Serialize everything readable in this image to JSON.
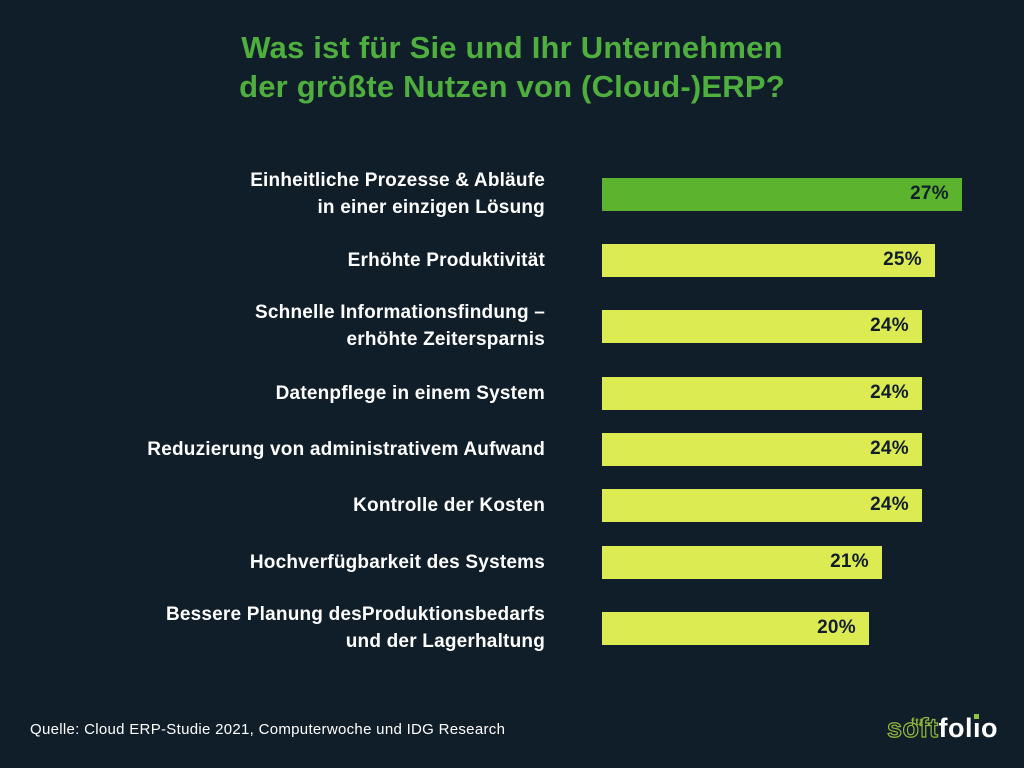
{
  "title": {
    "text": "Was ist für Sie und Ihr Unternehmen\nder größte Nutzen von (Cloud-)ERP?"
  },
  "chart_data": {
    "type": "bar",
    "orientation": "horizontal",
    "title": "Was ist für Sie und Ihr Unternehmen der größte Nutzen von (Cloud-)ERP?",
    "categories": [
      "Einheitliche Prozesse & Abläufe\nin einer einzigen Lösung",
      "Erhöhte Produktivität",
      "Schnelle Informationsfindung –\nerhöhte Zeitersparnis",
      "Datenpflege in einem System",
      "Reduzierung von administrativem Aufwand",
      "Kontrolle der Kosten",
      "Hochverfügbarkeit des Systems",
      "Bessere Planung desProduktionsbedarfs\nund der Lagerhaltung"
    ],
    "values": [
      27,
      25,
      24,
      24,
      24,
      24,
      21,
      20
    ],
    "value_labels": [
      "27%",
      "25%",
      "24%",
      "24%",
      "24%",
      "24%",
      "21%",
      "20%"
    ],
    "bar_colors": [
      "#5cb32e",
      "#ddeb52",
      "#ddeb52",
      "#ddeb52",
      "#ddeb52",
      "#ddeb52",
      "#ddeb52",
      "#ddeb52"
    ],
    "xlim": [
      0,
      27
    ],
    "grid": false,
    "legend": false,
    "value_label_position": "inside-end"
  },
  "source": {
    "text": "Quelle: Cloud ERP-Studie 2021, Computerwoche und IDG Research"
  },
  "logo": {
    "part_soft": "soft",
    "flourish": "ftt",
    "folio_prefix": "fol",
    "folio_i": "ı",
    "folio_suffix": "o"
  },
  "colors": {
    "background": "#101e2a",
    "title_green": "#4faf3e",
    "highlight_bar_green": "#5cb32e",
    "bar_yellow_green": "#ddeb52",
    "bar_value_text": "#101e2a",
    "label_white": "#ffffff",
    "logo_green": "#93b83c"
  }
}
